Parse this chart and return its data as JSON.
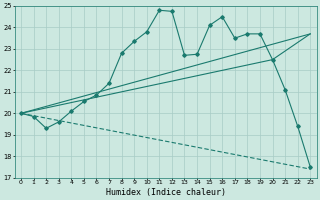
{
  "xlabel": "Humidex (Indice chaleur)",
  "bg_color": "#cce8e0",
  "grid_color": "#a8ccc6",
  "line_color": "#1a7a6e",
  "xlim": [
    -0.5,
    23.5
  ],
  "ylim": [
    17,
    25
  ],
  "xticks": [
    0,
    1,
    2,
    3,
    4,
    5,
    6,
    7,
    8,
    9,
    10,
    11,
    12,
    13,
    14,
    15,
    16,
    17,
    18,
    19,
    20,
    21,
    22,
    23
  ],
  "yticks": [
    17,
    18,
    19,
    20,
    21,
    22,
    23,
    24,
    25
  ],
  "line1_x": [
    0,
    1,
    2,
    3,
    4,
    5,
    6,
    7,
    8,
    9,
    10,
    11,
    12,
    13,
    14,
    15,
    16,
    17,
    18,
    19,
    20,
    21,
    22,
    23
  ],
  "line1_y": [
    20.0,
    19.85,
    19.3,
    19.6,
    20.1,
    20.55,
    20.85,
    21.4,
    22.8,
    23.35,
    23.8,
    24.8,
    24.75,
    22.7,
    22.75,
    24.1,
    24.5,
    23.5,
    23.7,
    23.7,
    22.5,
    21.1,
    19.4,
    17.5
  ],
  "line2_x": [
    0,
    23
  ],
  "line2_y": [
    20.0,
    23.7
  ],
  "line3_x": [
    0,
    23
  ],
  "line3_y": [
    20.0,
    17.4
  ],
  "line4_x": [
    0,
    20,
    23
  ],
  "line4_y": [
    20.0,
    22.5,
    23.7
  ]
}
